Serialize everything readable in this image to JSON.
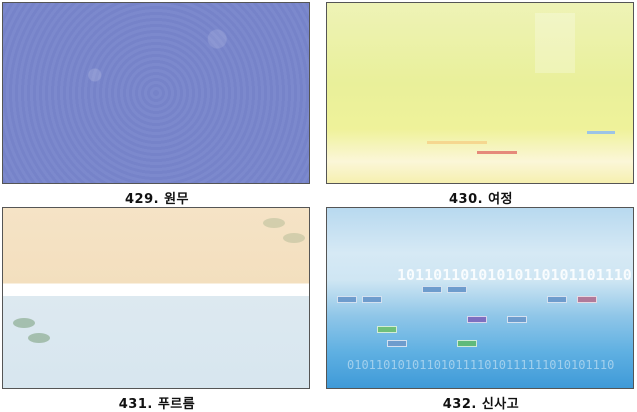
{
  "items": [
    {
      "caption": "429. 원무",
      "colors": {
        "base": "#7a87cb"
      }
    },
    {
      "caption": "430. 여정",
      "colors": {
        "base": "#e9f09a"
      }
    },
    {
      "caption": "431. 푸르름",
      "colors": {
        "top": "#f3dfbe",
        "bottom": "#d7e6ef"
      }
    },
    {
      "caption": "432. 신사고",
      "colors": {
        "top": "#b8d9ef",
        "bottom": "#3f9ad8"
      },
      "binary_text": "101101101010101101011011101011011",
      "binary_text_2": "0101101010110101111010111111010101110"
    }
  ]
}
